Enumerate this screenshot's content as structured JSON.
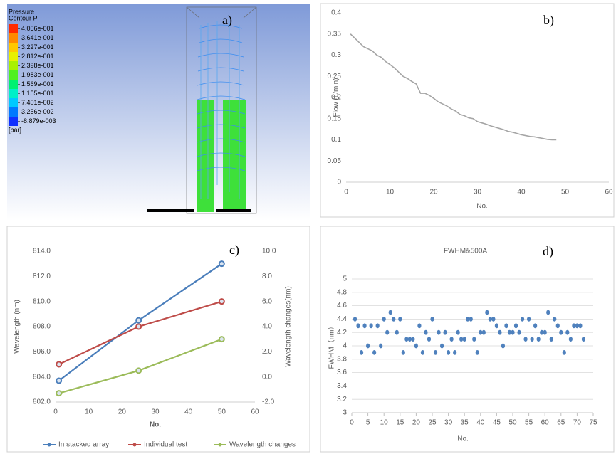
{
  "chart_data": [
    {
      "type": "contour",
      "panel_label": "a)",
      "title": "Pressure",
      "subtitle": "Contour P",
      "unit": "[bar]",
      "colorbar": [
        {
          "value": 0.4056,
          "label": "4.056e-001"
        },
        {
          "value": 0.3641,
          "label": "3.641e-001"
        },
        {
          "value": 0.3227,
          "label": "3.227e-001"
        },
        {
          "value": 0.2812,
          "label": "2.812e-001"
        },
        {
          "value": 0.2398,
          "label": "2.398e-001"
        },
        {
          "value": 0.1983,
          "label": "1.983e-001"
        },
        {
          "value": 0.1569,
          "label": "1.569e-001"
        },
        {
          "value": 0.1155,
          "label": "1.155e-001"
        },
        {
          "value": 0.07401,
          "label": "7.401e-002"
        },
        {
          "value": 0.03256,
          "label": "3.256e-002"
        },
        {
          "value": -0.008879,
          "label": "-8.879e-003"
        }
      ],
      "colorbar_colors": [
        "#ff2a00",
        "#ff8a00",
        "#ffc800",
        "#e8f000",
        "#a8f000",
        "#50f020",
        "#00f070",
        "#00f0c8",
        "#00c8ff",
        "#0078ff",
        "#1030ff"
      ]
    },
    {
      "type": "line",
      "panel_label": "b)",
      "y_label": "Flow (L/min)",
      "x_label": "No.",
      "x": [
        1,
        2,
        3,
        4,
        5,
        6,
        7,
        8,
        9,
        10,
        11,
        12,
        13,
        14,
        15,
        16,
        17,
        18,
        19,
        20,
        21,
        22,
        23,
        24,
        25,
        26,
        27,
        28,
        29,
        30,
        31,
        32,
        33,
        34,
        35,
        36,
        37,
        38,
        39,
        40,
        41,
        42,
        43,
        44,
        45,
        46,
        47,
        48
      ],
      "series": [
        {
          "color": "#a5a5a5",
          "values": [
            0.35,
            0.34,
            0.33,
            0.32,
            0.315,
            0.31,
            0.3,
            0.295,
            0.285,
            0.278,
            0.27,
            0.26,
            0.25,
            0.245,
            0.238,
            0.232,
            0.21,
            0.21,
            0.205,
            0.198,
            0.19,
            0.185,
            0.18,
            0.173,
            0.168,
            0.16,
            0.157,
            0.152,
            0.15,
            0.143,
            0.14,
            0.137,
            0.133,
            0.13,
            0.127,
            0.124,
            0.12,
            0.118,
            0.115,
            0.112,
            0.11,
            0.108,
            0.107,
            0.105,
            0.103,
            0.101,
            0.1,
            0.1
          ]
        }
      ],
      "xlim": [
        0,
        60
      ],
      "xticks": [
        0,
        10,
        20,
        30,
        40,
        50,
        60
      ],
      "ylim": [
        0,
        0.4
      ],
      "yticks": [
        0,
        0.05,
        0.1,
        0.15,
        0.2,
        0.25,
        0.3,
        0.35,
        0.4
      ],
      "grid": false
    },
    {
      "type": "line",
      "panel_label": "c)",
      "y_label": "Wavelength (nm)",
      "y2_label": "Wavelength changes(nm)",
      "x_label": "No.",
      "markers": true,
      "legend": "bottom",
      "x": [
        1,
        25,
        50
      ],
      "series": [
        {
          "name": "In stacked array",
          "color": "#4a7ebb",
          "values": [
            803.7,
            808.5,
            813.0
          ]
        },
        {
          "name": "Individual test",
          "color": "#be4b48",
          "values": [
            805.0,
            808.0,
            810.0
          ]
        },
        {
          "name": "Wavelength changes",
          "color": "#9bbb59",
          "axis": "y2",
          "values": [
            -1.3,
            0.5,
            3.0
          ]
        }
      ],
      "xlim": [
        0,
        60
      ],
      "xticks": [
        0,
        10,
        20,
        30,
        40,
        50,
        60
      ],
      "ylim": [
        802,
        814
      ],
      "yticks": [
        {
          "value": 802,
          "label": "802.0"
        },
        {
          "value": 804,
          "label": "804.0"
        },
        {
          "value": 806,
          "label": "806.0"
        },
        {
          "value": 808,
          "label": "808.0"
        },
        {
          "value": 810,
          "label": "810.0"
        },
        {
          "value": 812,
          "label": "812.0"
        },
        {
          "value": 814,
          "label": "814.0"
        }
      ],
      "y2lim": [
        -2,
        10
      ],
      "y2ticks": [
        {
          "value": -2,
          "label": "-2.0"
        },
        {
          "value": 0,
          "label": "0.0"
        },
        {
          "value": 2,
          "label": "2.0"
        },
        {
          "value": 4,
          "label": "4.0"
        },
        {
          "value": 6,
          "label": "6.0"
        },
        {
          "value": 8,
          "label": "8.0"
        },
        {
          "value": 10,
          "label": "10.0"
        }
      ],
      "grid": false
    },
    {
      "type": "scatter",
      "panel_label": "d)",
      "title": "FWHM&500A",
      "y_label": "FWHM（nm）",
      "x_label": "No.",
      "x": [
        1,
        2,
        3,
        4,
        5,
        6,
        7,
        8,
        9,
        10,
        11,
        12,
        13,
        14,
        15,
        16,
        17,
        18,
        19,
        20,
        21,
        22,
        23,
        24,
        25,
        26,
        27,
        28,
        29,
        30,
        31,
        32,
        33,
        34,
        35,
        36,
        37,
        38,
        39,
        40,
        41,
        42,
        43,
        44,
        45,
        46,
        47,
        48,
        49,
        50,
        51,
        52,
        53,
        54,
        55,
        56,
        57,
        58,
        59,
        60,
        61,
        62,
        63,
        64,
        65,
        66,
        67,
        68,
        69,
        70,
        71,
        72
      ],
      "series": [
        {
          "color": "#4f81bd",
          "values": [
            4.4,
            4.3,
            3.9,
            4.3,
            4.0,
            4.3,
            3.9,
            4.3,
            4.0,
            4.4,
            4.2,
            4.5,
            4.4,
            4.2,
            4.4,
            3.9,
            4.1,
            4.1,
            4.1,
            4.0,
            4.3,
            3.9,
            4.2,
            4.1,
            4.4,
            3.9,
            4.2,
            4.0,
            4.2,
            3.9,
            4.1,
            3.9,
            4.2,
            4.1,
            4.1,
            4.4,
            4.4,
            4.1,
            3.9,
            4.2,
            4.2,
            4.5,
            4.4,
            4.4,
            4.3,
            4.2,
            4.0,
            4.3,
            4.2,
            4.2,
            4.3,
            4.2,
            4.4,
            4.1,
            4.4,
            4.1,
            4.3,
            4.1,
            4.2,
            4.2,
            4.5,
            4.1,
            4.4,
            4.3,
            4.2,
            3.9,
            4.2,
            4.1,
            4.3,
            4.3,
            4.3,
            4.1
          ]
        }
      ],
      "xlim": [
        0,
        75
      ],
      "xticks": [
        0,
        5,
        10,
        15,
        20,
        25,
        30,
        35,
        40,
        45,
        50,
        55,
        60,
        65,
        70,
        75
      ],
      "ylim": [
        3,
        5
      ],
      "yticks": [
        3,
        3.2,
        3.4,
        3.6,
        3.8,
        4,
        4.2,
        4.4,
        4.6,
        4.8,
        5
      ],
      "grid": true
    }
  ]
}
